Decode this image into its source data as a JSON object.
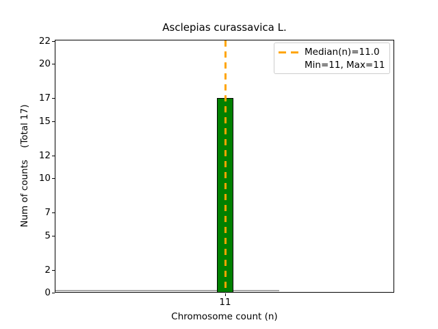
{
  "chart_data": {
    "type": "bar",
    "title": "Asclepias curassavica L.",
    "xlabel": "Chromosome count (n)",
    "ylabel": "Num of counts    (Total 17)",
    "categories": [
      "11"
    ],
    "values": [
      17
    ],
    "total_counts": 17,
    "yticks": [
      0,
      2,
      5,
      7,
      10,
      12,
      15,
      17,
      20,
      22
    ],
    "ylim": [
      0,
      22.1
    ],
    "grid": false,
    "legend_position": "upper right",
    "legend_entries": [
      "Median(n)=11.0",
      "Min=11, Max=11"
    ],
    "stats": {
      "median": 11.0,
      "min": 11,
      "max": 11
    },
    "colors": {
      "bar_fill": "#008000",
      "bar_edge": "#000000",
      "median_line": "#ffa500",
      "baseline_strip": "#a8a8a8",
      "legend_border": "#cccccc",
      "text": "#000000"
    },
    "median_line": {
      "value": 11.0,
      "style": "dashed",
      "orientation": "vertical"
    }
  }
}
